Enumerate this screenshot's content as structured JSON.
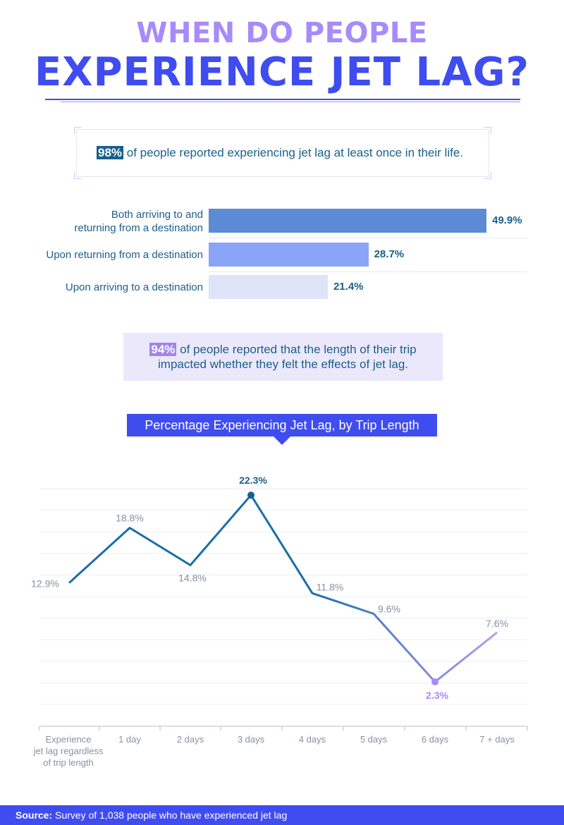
{
  "header": {
    "title_line1": "WHEN DO PEOPLE",
    "title_line2": "EXPERIENCE JET LAG?"
  },
  "stat1": {
    "highlight": "98%",
    "text": " of people reported experiencing jet lag at least once in their life."
  },
  "bar_chart": {
    "type": "bar",
    "orientation": "horizontal",
    "categories": [
      "Both arriving to and returning from a destination",
      "Upon returning from a destination",
      "Upon arriving to a destination"
    ],
    "label_lines": [
      [
        "Both arriving to and",
        "returning from a destination"
      ],
      [
        "Upon returning from a destination"
      ],
      [
        "Upon arriving to a destination"
      ]
    ],
    "values": [
      49.9,
      28.7,
      21.4
    ],
    "value_labels": [
      "49.9%",
      "28.7%",
      "21.4%"
    ],
    "colors": [
      "#5b8bd4",
      "#8aa4f7",
      "#dfe4f9"
    ]
  },
  "stat2": {
    "highlight": "94%",
    "text_line1": " of people reported that the length of their trip",
    "text_line2": "impacted whether they felt the effects of jet lag."
  },
  "chart_data": {
    "type": "line",
    "title": "Percentage Experiencing Jet Lag, by Trip Length",
    "categories": [
      [
        "Experience",
        "jet lag regardless",
        "of trip length"
      ],
      [
        "1 day"
      ],
      [
        "2 days"
      ],
      [
        "3 days"
      ],
      [
        "4 days"
      ],
      [
        "5 days"
      ],
      [
        "6 days"
      ],
      [
        "7 + days"
      ]
    ],
    "values": [
      12.9,
      18.8,
      14.8,
      22.3,
      11.8,
      9.6,
      2.3,
      7.6
    ],
    "value_labels": [
      "12.9%",
      "18.8%",
      "14.8%",
      "22.3%",
      "11.8%",
      "9.6%",
      "2.3%",
      "7.6%"
    ],
    "highlighted": {
      "max_index": 3,
      "min_index": 6
    },
    "grid": true,
    "colors": {
      "start": "#1a6ea8",
      "end": "#b79cf5",
      "max_label": "#1a5f8a",
      "min_label": "#a78bfa",
      "label": "#8b8fa3"
    }
  },
  "footer": {
    "source_label": "Source:",
    "source_text": " Survey of 1,038 people who have experienced jet lag"
  }
}
